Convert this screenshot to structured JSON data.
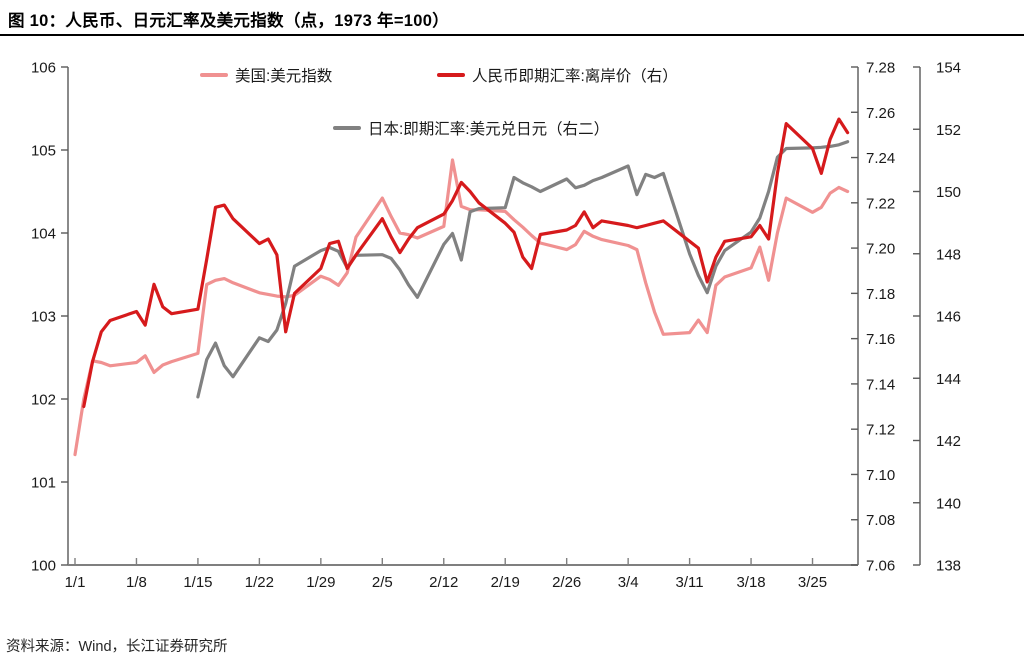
{
  "source_text": "资料来源：Wind，长江证券研究所",
  "chart_data": {
    "type": "line",
    "title": "图 10：人民币、日元汇率及美元指数（点，1973 年=100）",
    "legend_position": "top-center",
    "grid": false,
    "x": {
      "tick_labels": [
        "1/1",
        "1/8",
        "1/15",
        "1/22",
        "1/29",
        "2/5",
        "2/12",
        "2/19",
        "2/26",
        "3/4",
        "3/11",
        "3/18",
        "3/25"
      ],
      "dates": [
        "1/1",
        "1/2",
        "1/3",
        "1/4",
        "1/5",
        "1/8",
        "1/9",
        "1/10",
        "1/11",
        "1/12",
        "1/15",
        "1/16",
        "1/17",
        "1/18",
        "1/19",
        "1/22",
        "1/23",
        "1/24",
        "1/25",
        "1/26",
        "1/29",
        "1/30",
        "1/31",
        "2/1",
        "2/2",
        "2/5",
        "2/6",
        "2/7",
        "2/8",
        "2/9",
        "2/12",
        "2/13",
        "2/14",
        "2/15",
        "2/16",
        "2/19",
        "2/20",
        "2/21",
        "2/22",
        "2/23",
        "2/26",
        "2/27",
        "2/28",
        "2/29",
        "3/1",
        "3/4",
        "3/5",
        "3/6",
        "3/7",
        "3/8",
        "3/11",
        "3/12",
        "3/13",
        "3/14",
        "3/15",
        "3/18",
        "3/19",
        "3/20",
        "3/21",
        "3/22",
        "3/25",
        "3/26",
        "3/27",
        "3/28",
        "3/29"
      ]
    },
    "axes": {
      "left": {
        "min": 100,
        "max": 106,
        "tick_values": [
          100,
          101,
          102,
          103,
          104,
          105,
          106
        ],
        "tick_labels": [
          "100",
          "101",
          "102",
          "103",
          "104",
          "105",
          "106"
        ]
      },
      "right1": {
        "min": 7.06,
        "max": 7.28,
        "tick_values": [
          7.06,
          7.08,
          7.1,
          7.12,
          7.14,
          7.16,
          7.18,
          7.2,
          7.22,
          7.24,
          7.26,
          7.28
        ],
        "tick_labels": [
          "7.06",
          "7.08",
          "7.10",
          "7.12",
          "7.14",
          "7.16",
          "7.18",
          "7.20",
          "7.22",
          "7.24",
          "7.26",
          "7.28"
        ]
      },
      "right2": {
        "min": 138,
        "max": 154,
        "tick_values": [
          138,
          140,
          142,
          144,
          146,
          148,
          150,
          152,
          154
        ],
        "tick_labels": [
          "138",
          "140",
          "142",
          "144",
          "146",
          "148",
          "150",
          "152",
          "154"
        ]
      }
    },
    "series": [
      {
        "id": "us-dollar-index",
        "name": "美国:美元指数",
        "axis": "left",
        "color": "#F09191",
        "values": [
          101.33,
          102.0,
          102.46,
          102.44,
          102.4,
          102.44,
          102.52,
          102.32,
          102.41,
          102.45,
          102.55,
          103.38,
          103.43,
          103.45,
          103.4,
          103.28,
          103.26,
          103.24,
          103.23,
          103.25,
          103.48,
          103.44,
          103.37,
          103.52,
          103.95,
          104.42,
          104.2,
          104.0,
          103.98,
          103.94,
          104.08,
          104.88,
          104.32,
          104.28,
          104.28,
          104.26,
          104.16,
          104.07,
          103.97,
          103.88,
          103.8,
          103.86,
          104.02,
          103.96,
          103.92,
          103.85,
          103.8,
          103.4,
          103.05,
          102.78,
          102.8,
          102.95,
          102.8,
          103.37,
          103.47,
          103.58,
          103.83,
          103.43,
          104.0,
          104.42,
          104.25,
          104.31,
          104.48,
          104.55,
          104.5
        ]
      },
      {
        "id": "cnh-offshore",
        "name": "人民币即期汇率:离岸价（右）",
        "axis": "right1",
        "color": "#D61A1C",
        "values": [
          null,
          7.13,
          7.15,
          7.163,
          7.168,
          7.172,
          7.166,
          7.184,
          7.174,
          7.171,
          7.173,
          7.195,
          7.218,
          7.219,
          7.213,
          7.202,
          7.204,
          7.197,
          7.163,
          7.18,
          7.191,
          7.202,
          7.203,
          7.191,
          7.197,
          7.213,
          7.205,
          7.198,
          7.204,
          7.209,
          7.215,
          7.221,
          7.229,
          7.225,
          7.22,
          7.211,
          7.207,
          7.196,
          7.191,
          7.206,
          7.208,
          7.21,
          7.216,
          7.209,
          7.212,
          7.21,
          7.209,
          7.21,
          7.211,
          7.212,
          7.203,
          7.2,
          7.185,
          7.196,
          7.203,
          7.205,
          7.21,
          7.204,
          7.233,
          7.255,
          7.244,
          7.233,
          7.248,
          7.257,
          7.251
        ]
      },
      {
        "id": "usd-jpy",
        "name": "日本:即期汇率:美元兑日元（右二）",
        "axis": "right2",
        "color": "#818181",
        "values": [
          null,
          null,
          null,
          null,
          null,
          null,
          null,
          null,
          null,
          null,
          143.4,
          144.6,
          145.13,
          144.4,
          144.05,
          145.3,
          145.18,
          145.55,
          146.4,
          147.6,
          148.1,
          148.2,
          148.08,
          147.55,
          147.95,
          147.97,
          147.85,
          147.48,
          147.0,
          146.6,
          148.3,
          148.65,
          147.8,
          149.35,
          149.45,
          149.48,
          150.45,
          150.28,
          150.15,
          150.0,
          150.4,
          150.12,
          150.2,
          150.35,
          150.45,
          150.82,
          149.9,
          150.55,
          150.45,
          150.58,
          148.0,
          147.3,
          146.75,
          147.6,
          148.1,
          148.7,
          149.15,
          150.0,
          151.1,
          151.38,
          151.4,
          151.42,
          151.45,
          151.5,
          151.6
        ]
      }
    ]
  }
}
